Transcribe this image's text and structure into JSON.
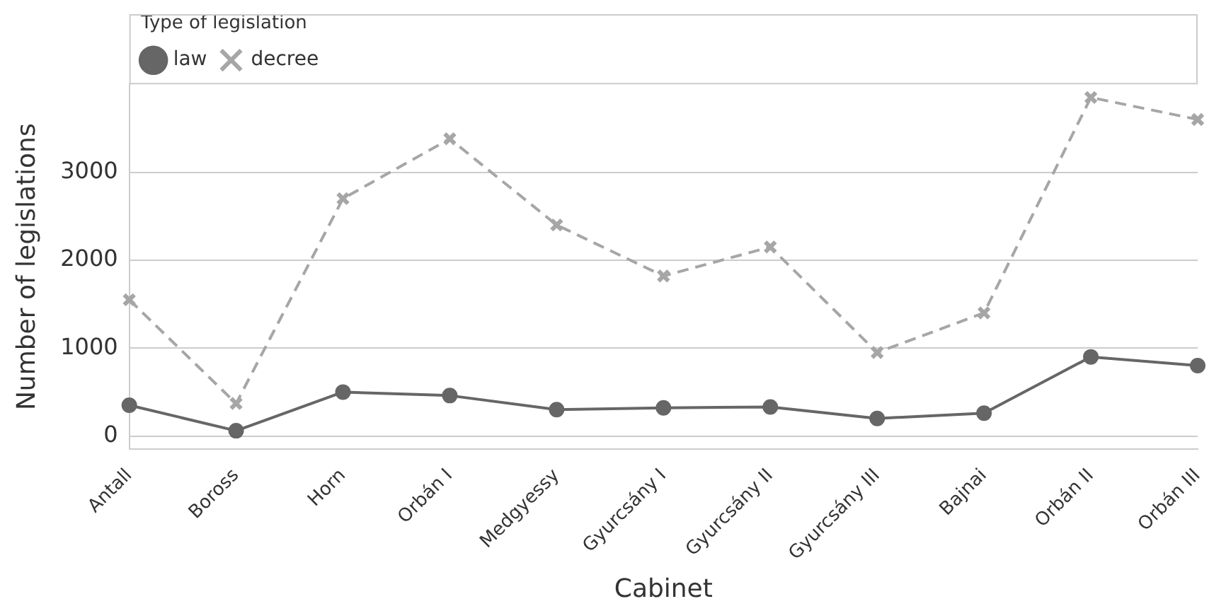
{
  "chart_data": {
    "type": "line",
    "xlabel": "Cabinet",
    "ylabel": "Number of legislations",
    "legend_title": "Type of legislation",
    "categories": [
      "Antall",
      "Boross",
      "Horn",
      "Orbán I",
      "Medgyessy",
      "Gyurcsány I",
      "Gyurcsány II",
      "Gyurcsány III",
      "Bajnai",
      "Orbán II",
      "Orbán III"
    ],
    "series": [
      {
        "name": "law",
        "color": "#666666",
        "marker": "circle",
        "line_style": "solid",
        "values": [
          350,
          60,
          500,
          460,
          300,
          320,
          330,
          200,
          260,
          900,
          800
        ]
      },
      {
        "name": "decree",
        "color": "#a6a6a6",
        "marker": "cross",
        "line_style": "dashed",
        "values": [
          1550,
          370,
          2700,
          3380,
          2400,
          1820,
          2150,
          950,
          1400,
          3850,
          3600
        ]
      }
    ],
    "ylim": [
      -150,
      4000
    ],
    "yticks": [
      0,
      1000,
      2000,
      3000
    ],
    "grid": "y",
    "legend": "top left"
  }
}
